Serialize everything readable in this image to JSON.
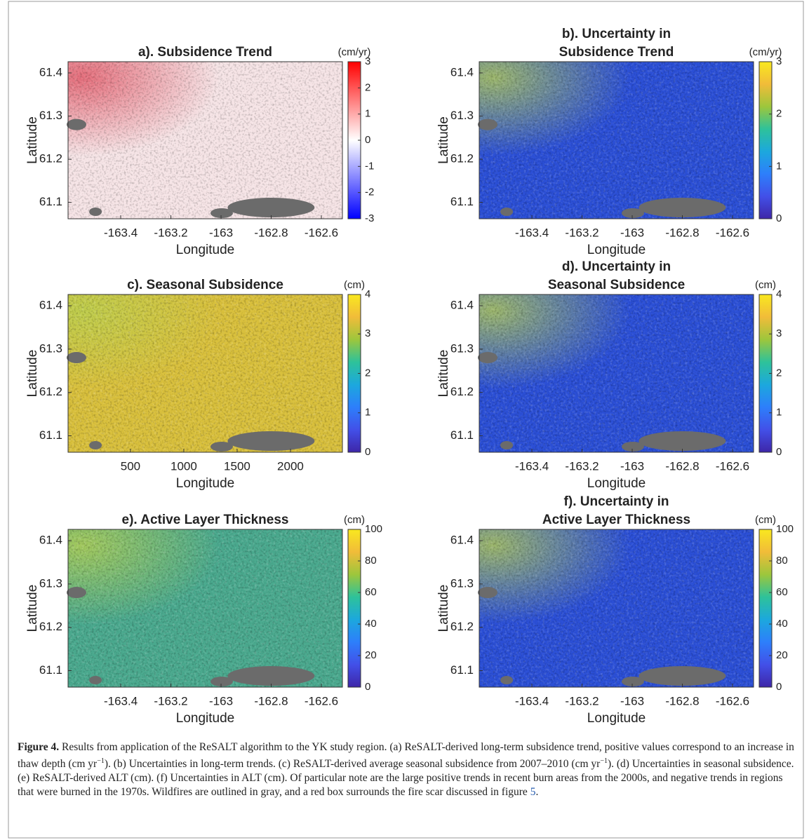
{
  "chart_data": [
    {
      "type": "heatmap",
      "title": [
        "a). Subsidence Trend"
      ],
      "xlabel": "Longitude",
      "ylabel": "Latitude",
      "xlim": [
        -163.61,
        -162.516
      ],
      "xticks": [
        -163.4,
        -163.2,
        -163,
        -162.8,
        -162.6
      ],
      "ylim": [
        61.062,
        61.426
      ],
      "yticks": [
        61.1,
        61.2,
        61.3,
        61.4
      ],
      "fill_color": "#f6e4e6",
      "colorbar": {
        "label": "(cm/yr)",
        "lim": [
          -3,
          3
        ],
        "ticks": [
          -3,
          -2,
          -1,
          0,
          1,
          2,
          3
        ],
        "colormap": "bwr"
      }
    },
    {
      "type": "heatmap",
      "title": [
        "b). Uncertainty in",
        "Subsidence Trend"
      ],
      "xlabel": "Longitude",
      "ylabel": "Latitude",
      "xlim": [
        -163.61,
        -162.516
      ],
      "xticks": [
        -163.4,
        -163.2,
        -163,
        -162.8,
        -162.6
      ],
      "ylim": [
        61.062,
        61.426
      ],
      "yticks": [
        61.1,
        61.2,
        61.3,
        61.4
      ],
      "fill_color": "#2b4fd6",
      "colorbar": {
        "label": "(cm/yr)",
        "lim": [
          0,
          3
        ],
        "ticks": [
          0,
          1,
          2,
          3
        ],
        "colormap": "parula"
      }
    },
    {
      "type": "heatmap",
      "title": [
        "c). Seasonal Subsidence"
      ],
      "xlabel": "Longitude",
      "ylabel": "Latitude",
      "xlim": [
        -85,
        2487
      ],
      "xticks": [
        500,
        1000,
        1500,
        2000
      ],
      "ylim": [
        61.062,
        61.426
      ],
      "yticks": [
        61.1,
        61.2,
        61.3,
        61.4
      ],
      "fill_color": "#d9c03c",
      "colorbar": {
        "label": "(cm)",
        "lim": [
          0,
          4
        ],
        "ticks": [
          0,
          1,
          2,
          3,
          4
        ],
        "colormap": "parula"
      }
    },
    {
      "type": "heatmap",
      "title": [
        "d). Uncertainty in",
        "Seasonal Subsidence"
      ],
      "xlabel": "Longitude",
      "ylabel": "Latitude",
      "xlim": [
        -163.61,
        -162.516
      ],
      "xticks": [
        -163.4,
        -163.2,
        -163,
        -162.8,
        -162.6
      ],
      "ylim": [
        61.062,
        61.426
      ],
      "yticks": [
        61.1,
        61.2,
        61.3,
        61.4
      ],
      "fill_color": "#2b4fd6",
      "colorbar": {
        "label": "(cm)",
        "lim": [
          0,
          4
        ],
        "ticks": [
          0,
          1,
          2,
          3,
          4
        ],
        "colormap": "parula"
      }
    },
    {
      "type": "heatmap",
      "title": [
        "e). Active Layer Thickness"
      ],
      "xlabel": "Longitude",
      "ylabel": "Latitude",
      "xlim": [
        -163.61,
        -162.516
      ],
      "xticks": [
        -163.4,
        -163.2,
        -163,
        -162.8,
        -162.6
      ],
      "ylim": [
        61.062,
        61.426
      ],
      "yticks": [
        61.1,
        61.2,
        61.3,
        61.4
      ],
      "fill_color": "#4aa98e",
      "colorbar": {
        "label": "(cm)",
        "lim": [
          0,
          100
        ],
        "ticks": [
          0,
          20,
          40,
          60,
          80,
          100
        ],
        "colormap": "parula"
      }
    },
    {
      "type": "heatmap",
      "title": [
        "f). Uncertainty in",
        "Active Layer Thickness"
      ],
      "xlabel": "Longitude",
      "ylabel": "Latitude",
      "xlim": [
        -163.61,
        -162.516
      ],
      "xticks": [
        -163.4,
        -163.2,
        -163,
        -162.8,
        -162.6
      ],
      "ylim": [
        61.062,
        61.426
      ],
      "yticks": [
        61.1,
        61.2,
        61.3,
        61.4
      ],
      "fill_color": "#2b4fd6",
      "colorbar": {
        "label": "(cm)",
        "lim": [
          0,
          100
        ],
        "ticks": [
          0,
          20,
          40,
          60,
          80,
          100
        ],
        "colormap": "parula"
      }
    }
  ],
  "caption": {
    "label": "Figure 4.",
    "parts": [
      " Results from application of the ReSALT algorithm to the YK study region. (a) ReSALT-derived long-term subsidence trend, positive values correspond to an increase in thaw depth (cm yr",
      "−1",
      "). (b) Uncertainties in long-term trends. (c) ReSALT-derived average seasonal subsidence from 2007–2010 (cm yr",
      "−1",
      "). (d) Uncertainties in seasonal subsidence. (e) ReSALT-derived ALT (cm). (f) Uncertainties in ALT (cm). Of particular note are the large positive trends in recent burn areas from the 2000s, and negative trends in regions that were burned in the 1970s. Wildfires are outlined in gray, and a red box surrounds the fire scar discussed in figure ",
      "5",
      "."
    ]
  }
}
